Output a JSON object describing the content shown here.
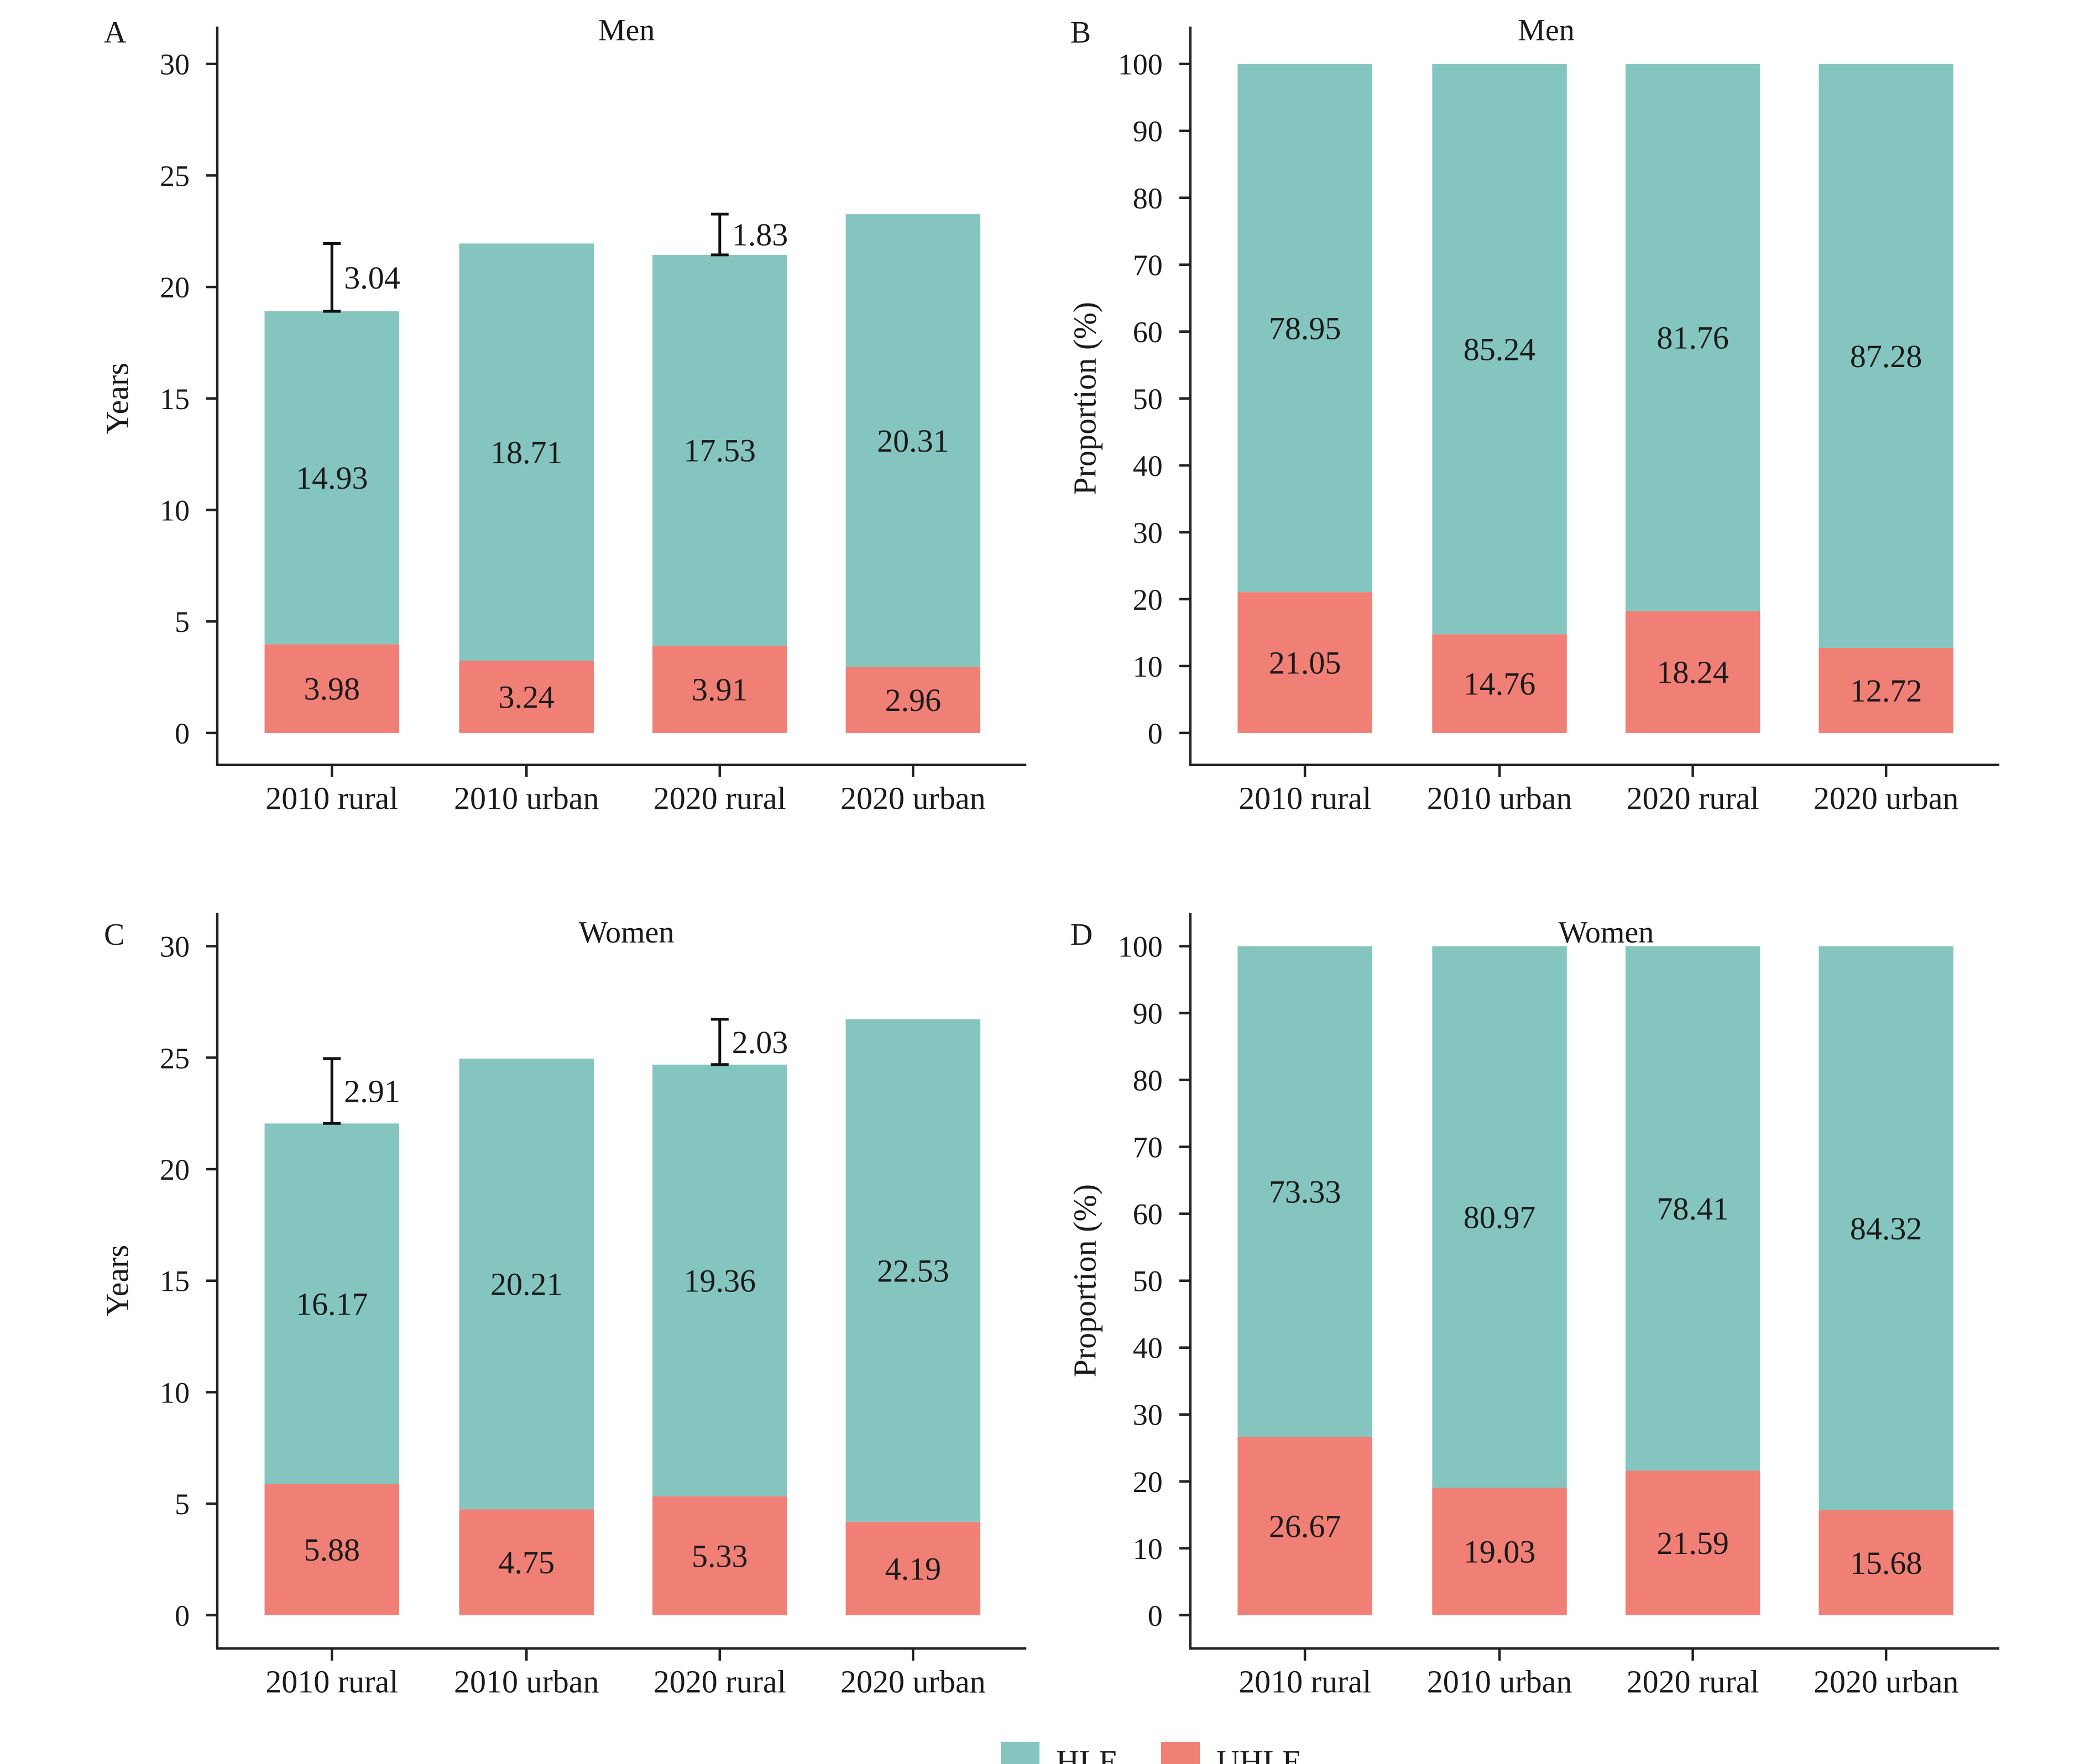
{
  "legend": [
    {
      "label": "HLE",
      "color": "#85C5BF"
    },
    {
      "label": "UHLE",
      "color": "#F07F76"
    }
  ],
  "chart_data": [
    {
      "panel": "A",
      "type": "bar",
      "stacked": true,
      "title": "Men",
      "ylabel": "Years",
      "ylim": [
        0,
        30
      ],
      "yticks": [
        0,
        5,
        10,
        15,
        20,
        25,
        30
      ],
      "categories": [
        "2010 rural",
        "2010 urban",
        "2020 rural",
        "2020 urban"
      ],
      "series": [
        {
          "name": "UHLE",
          "color": "#F07F76",
          "values": [
            3.98,
            3.24,
            3.91,
            2.96
          ],
          "labels": [
            "3.98",
            "3.24",
            "3.91",
            "2.96"
          ]
        },
        {
          "name": "HLE",
          "color": "#85C5BF",
          "values": [
            14.93,
            18.71,
            17.53,
            20.31
          ],
          "labels": [
            "14.93",
            "18.71",
            "17.53",
            "20.31"
          ]
        }
      ],
      "gaps": [
        {
          "category": "2010 rural",
          "from": 18.91,
          "to": 21.95,
          "label": "3.04"
        },
        {
          "category": "2020 rural",
          "from": 21.44,
          "to": 23.27,
          "label": "1.83"
        }
      ]
    },
    {
      "panel": "B",
      "type": "bar",
      "stacked": true,
      "title": "Men",
      "ylabel": "Proportion (%)",
      "ylim": [
        0,
        100
      ],
      "yticks": [
        0,
        10,
        20,
        30,
        40,
        50,
        60,
        70,
        80,
        90,
        100
      ],
      "categories": [
        "2010 rural",
        "2010 urban",
        "2020 rural",
        "2020 urban"
      ],
      "series": [
        {
          "name": "UHLE",
          "color": "#F07F76",
          "values": [
            21.05,
            14.76,
            18.24,
            12.72
          ],
          "labels": [
            "21.05",
            "14.76",
            "18.24",
            "12.72"
          ]
        },
        {
          "name": "HLE",
          "color": "#85C5BF",
          "values": [
            78.95,
            85.24,
            81.76,
            87.28
          ],
          "labels": [
            "78.95",
            "85.24",
            "81.76",
            "87.28"
          ]
        }
      ],
      "gaps": []
    },
    {
      "panel": "C",
      "type": "bar",
      "stacked": true,
      "title": "Women",
      "ylabel": "Years",
      "ylim": [
        0,
        30
      ],
      "yticks": [
        0,
        5,
        10,
        15,
        20,
        25,
        30
      ],
      "categories": [
        "2010 rural",
        "2010 urban",
        "2020 rural",
        "2020 urban"
      ],
      "series": [
        {
          "name": "UHLE",
          "color": "#F07F76",
          "values": [
            5.88,
            4.75,
            5.33,
            4.19
          ],
          "labels": [
            "5.88",
            "4.75",
            "5.33",
            "4.19"
          ]
        },
        {
          "name": "HLE",
          "color": "#85C5BF",
          "values": [
            16.17,
            20.21,
            19.36,
            22.53
          ],
          "labels": [
            "16.17",
            "20.21",
            "19.36",
            "22.53"
          ]
        }
      ],
      "gaps": [
        {
          "category": "2010 rural",
          "from": 22.05,
          "to": 24.96,
          "label": "2.91"
        },
        {
          "category": "2020 rural",
          "from": 24.69,
          "to": 26.72,
          "label": "2.03"
        }
      ]
    },
    {
      "panel": "D",
      "type": "bar",
      "stacked": true,
      "title": "Women",
      "ylabel": "Proportion (%)",
      "ylim": [
        0,
        100
      ],
      "yticks": [
        0,
        10,
        20,
        30,
        40,
        50,
        60,
        70,
        80,
        90,
        100
      ],
      "categories": [
        "2010 rural",
        "2010 urban",
        "2020 rural",
        "2020 urban"
      ],
      "series": [
        {
          "name": "UHLE",
          "color": "#F07F76",
          "values": [
            26.67,
            19.03,
            21.59,
            15.68
          ],
          "labels": [
            "26.67",
            "19.03",
            "21.59",
            "15.68"
          ]
        },
        {
          "name": "HLE",
          "color": "#85C5BF",
          "values": [
            73.33,
            80.97,
            78.41,
            84.32
          ],
          "labels": [
            "73.33",
            "80.97",
            "78.41",
            "84.32"
          ]
        }
      ],
      "gaps": []
    }
  ]
}
